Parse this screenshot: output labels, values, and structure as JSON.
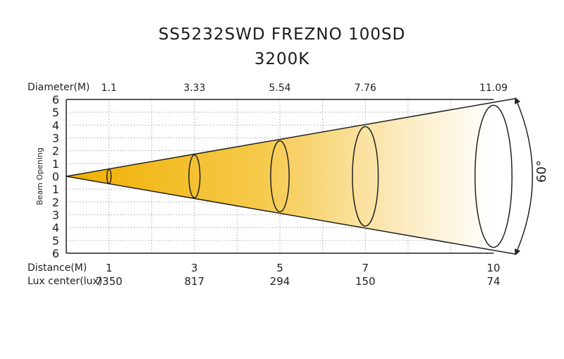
{
  "title_line1": "SS5232SWD FREZNO 100SD",
  "title_line2": "3200K",
  "chart_data": {
    "type": "beam-diagram",
    "beam_angle_label": "60°",
    "beam_angle_deg": 60,
    "ylabel": "Beam Opening",
    "y_ticks": [
      "6",
      "5",
      "4",
      "3",
      "2",
      "1",
      "0",
      "1",
      "2",
      "3",
      "4",
      "5",
      "6"
    ],
    "ylim": [
      -6,
      6
    ],
    "xlim": [
      0,
      10
    ],
    "row_labels": {
      "diameter": "Diameter(M)",
      "distance": "Distance(M)",
      "lux": "Lux center(lux)"
    },
    "points": [
      {
        "distance": "1",
        "diameter": "1.1",
        "lux": "7350"
      },
      {
        "distance": "3",
        "diameter": "3.33",
        "lux": "817"
      },
      {
        "distance": "5",
        "diameter": "5.54",
        "lux": "294"
      },
      {
        "distance": "7",
        "diameter": "7.76",
        "lux": "150"
      },
      {
        "distance": "10",
        "diameter": "11.09",
        "lux": "74"
      }
    ],
    "grid": true,
    "colors": {
      "beam_start": "#f0b400",
      "beam_end": "#ffffff",
      "line": "#222222",
      "grid": "#888888"
    }
  }
}
